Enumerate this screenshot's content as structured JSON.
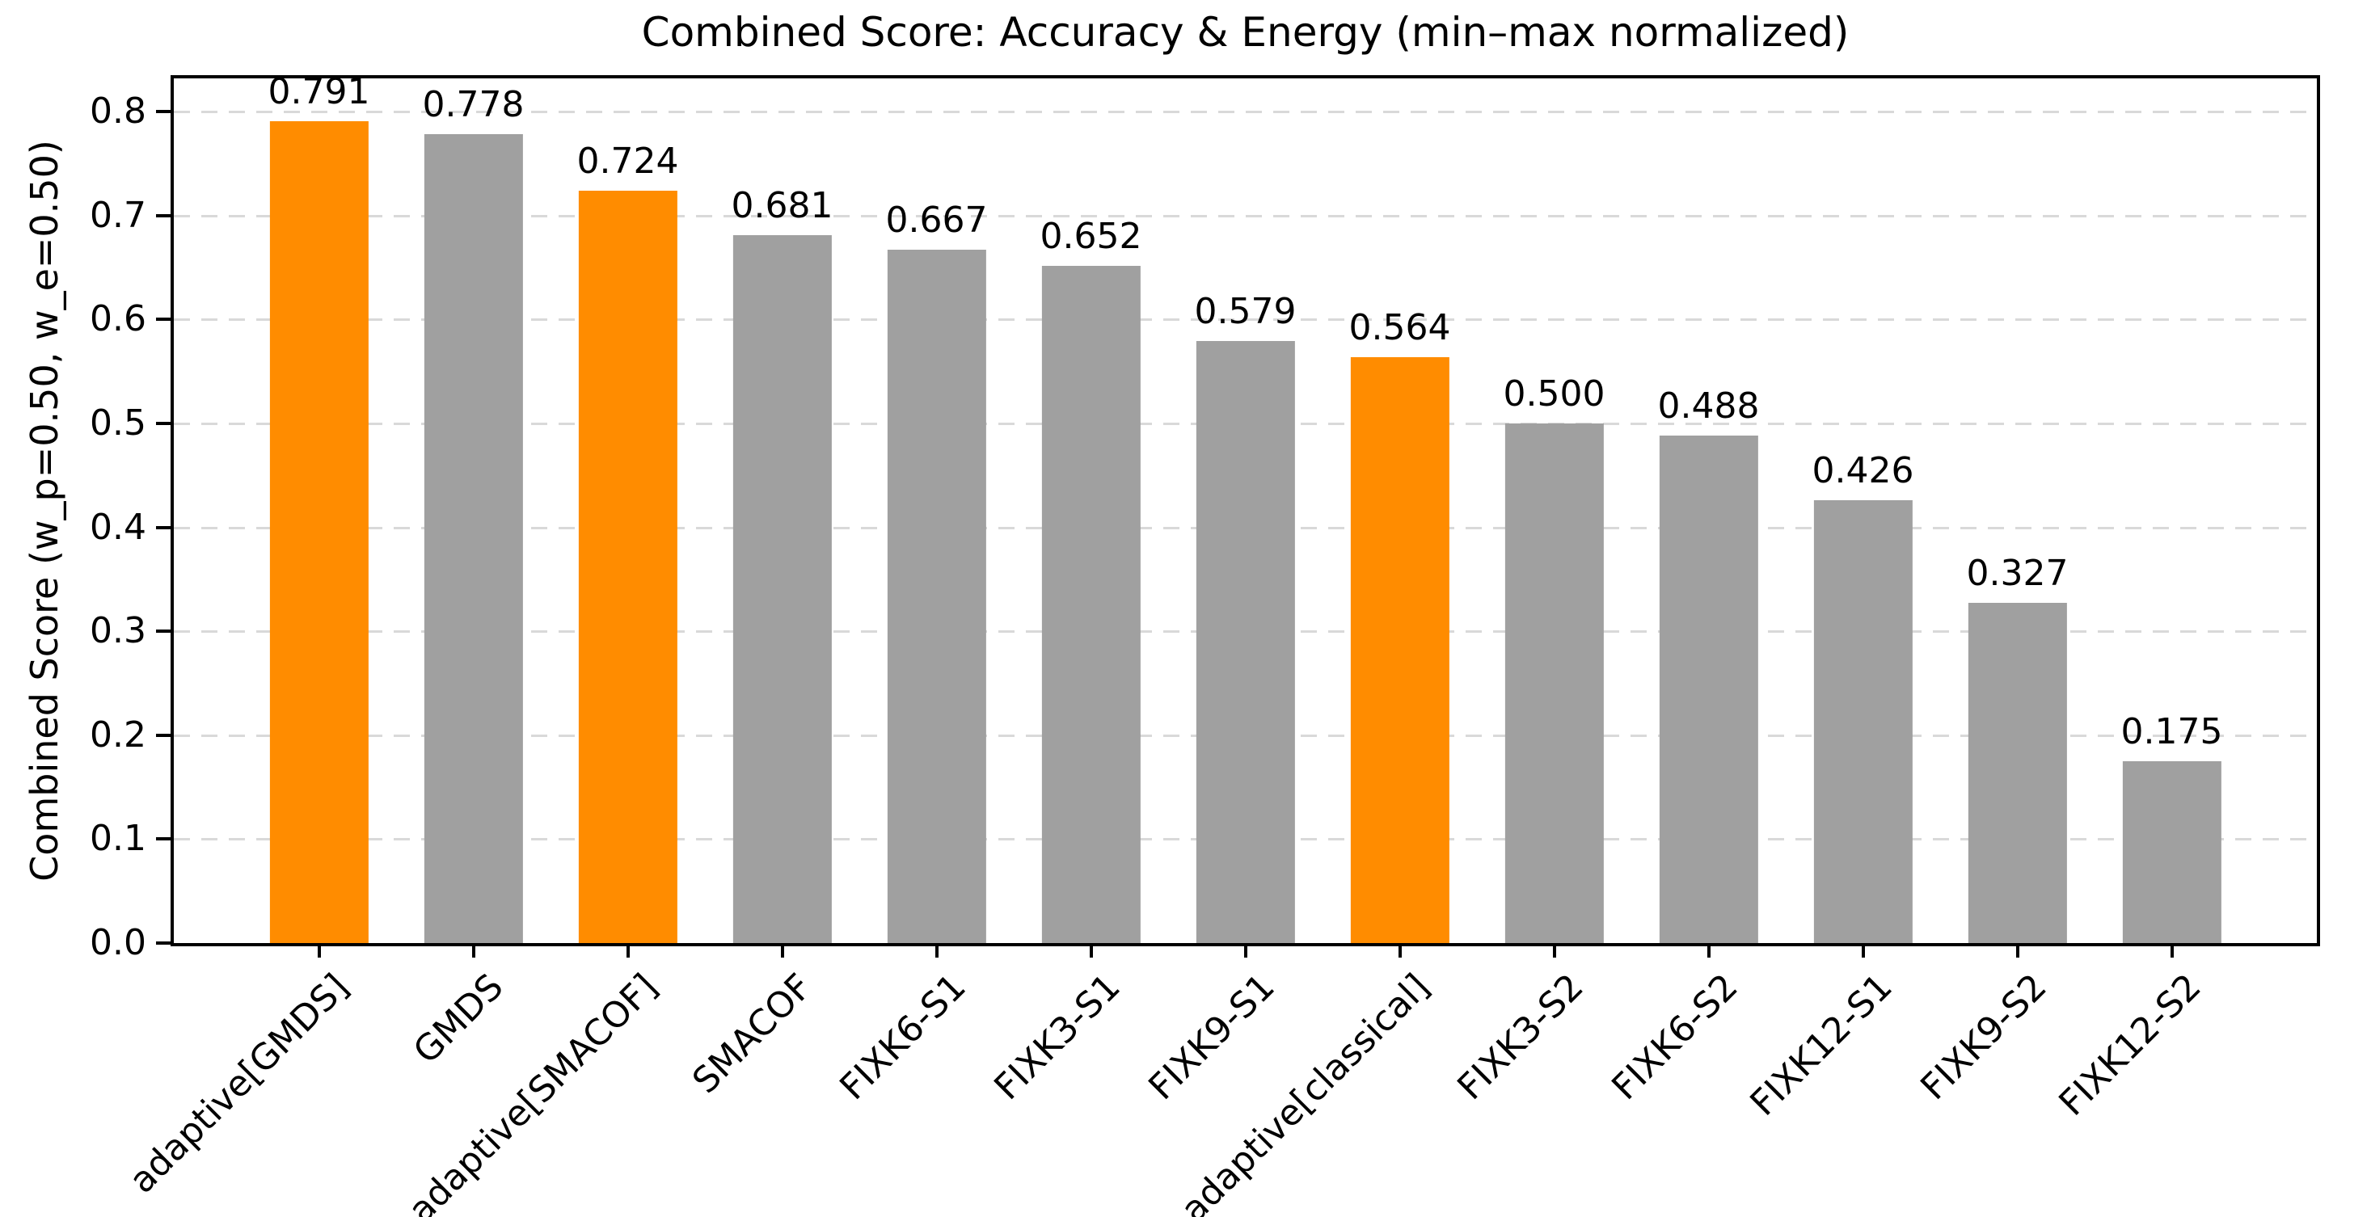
{
  "chart_data": {
    "type": "bar",
    "title": "Combined Score: Accuracy & Energy (min–max normalized)",
    "xlabel": "",
    "ylabel": "Combined Score (w_p=0.50, w_e=0.50)",
    "categories": [
      "adaptive[GMDS]",
      "GMDS",
      "adaptive[SMACOF]",
      "SMACOF",
      "FIXK6-S1",
      "FIXK3-S1",
      "FIXK9-S1",
      "adaptive[classical]",
      "FIXK3-S2",
      "FIXK6-S2",
      "FIXK12-S1",
      "FIXK9-S2",
      "FIXK12-S2"
    ],
    "values": [
      0.791,
      0.778,
      0.724,
      0.681,
      0.667,
      0.652,
      0.579,
      0.564,
      0.5,
      0.488,
      0.426,
      0.327,
      0.175
    ],
    "value_labels": [
      "0.791",
      "0.778",
      "0.724",
      "0.681",
      "0.667",
      "0.652",
      "0.579",
      "0.564",
      "0.500",
      "0.488",
      "0.426",
      "0.327",
      "0.175"
    ],
    "highlighted_indices": [
      0,
      2,
      7
    ],
    "highlighted_categories": [
      "adaptive[GMDS]",
      "adaptive[SMACOF]",
      "adaptive[classical]"
    ],
    "colors": {
      "bar_default": "#a0a0a0",
      "bar_highlight": "#ff8c00",
      "grid": "#d9d9d9",
      "axis": "#000000",
      "text": "#000000"
    },
    "ylim": [
      0,
      0.832
    ],
    "yticks": [
      "0.0",
      "0.1",
      "0.2",
      "0.3",
      "0.4",
      "0.5",
      "0.6",
      "0.7",
      "0.8"
    ],
    "grid": "horizontal dashed, behind bars",
    "legend": "none",
    "x_tick_rotation_deg": 45
  }
}
